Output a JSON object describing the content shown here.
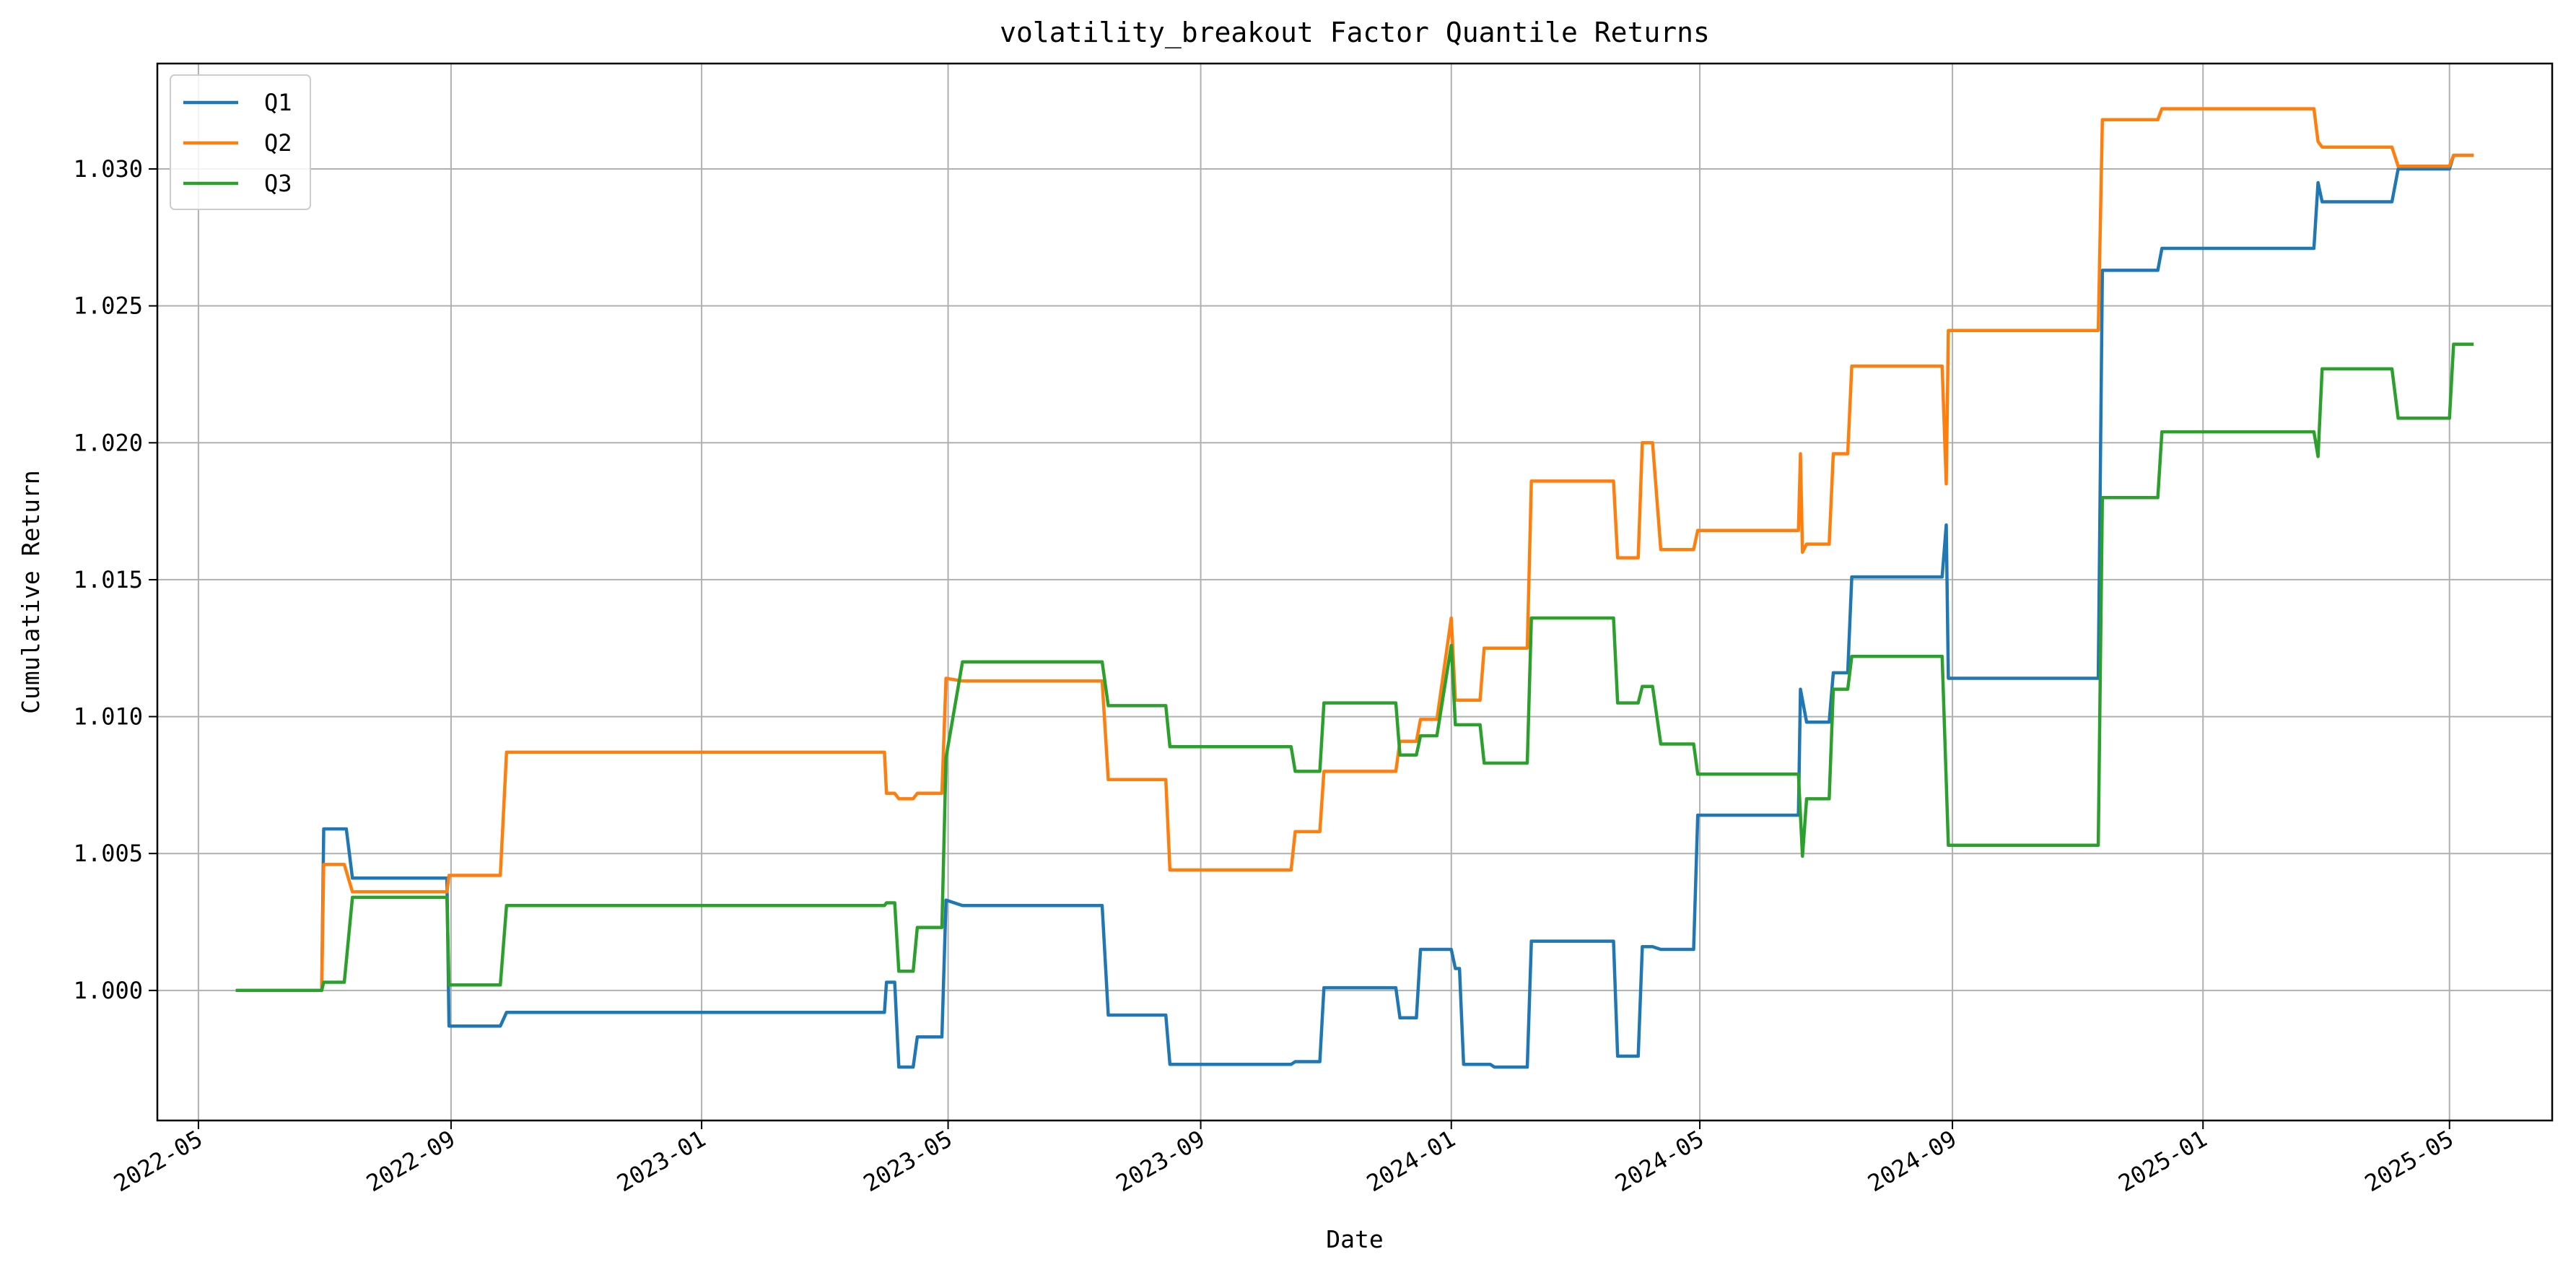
{
  "chart_data": {
    "type": "line",
    "title": "volatility_breakout Factor Quantile Returns",
    "xlabel": "Date",
    "ylabel": "Cumulative Return",
    "xlim": [
      "2022-04-11",
      "2025-06-20"
    ],
    "ylim": [
      0.99525,
      1.03385
    ],
    "grid": true,
    "legend_position": "top-left",
    "x_ticks": [
      "2022-05",
      "2022-09",
      "2023-01",
      "2023-05",
      "2023-09",
      "2024-01",
      "2024-05",
      "2024-09",
      "2025-01",
      "2025-05"
    ],
    "y_ticks": [
      "1.000",
      "1.005",
      "1.010",
      "1.015",
      "1.020",
      "1.025",
      "1.030"
    ],
    "series": [
      {
        "name": "Q1",
        "color": "#1f77b4",
        "points": [
          [
            "2022-05-20",
            1.0
          ],
          [
            "2022-06-30",
            1.0
          ],
          [
            "2022-07-01",
            1.0059
          ],
          [
            "2022-07-12",
            1.0059
          ],
          [
            "2022-07-15",
            1.0041
          ],
          [
            "2022-08-30",
            1.0041
          ],
          [
            "2022-08-31",
            0.9987
          ],
          [
            "2022-09-25",
            0.9987
          ],
          [
            "2022-09-28",
            0.9992
          ],
          [
            "2023-03-31",
            0.9992
          ],
          [
            "2023-04-01",
            1.0003
          ],
          [
            "2023-04-05",
            1.0003
          ],
          [
            "2023-04-07",
            0.9972
          ],
          [
            "2023-04-14",
            0.9972
          ],
          [
            "2023-04-16",
            0.9983
          ],
          [
            "2023-04-28",
            0.9983
          ],
          [
            "2023-04-30",
            1.0033
          ],
          [
            "2023-05-08",
            1.0031
          ],
          [
            "2023-07-15",
            1.0031
          ],
          [
            "2023-07-18",
            0.9991
          ],
          [
            "2023-08-15",
            0.9991
          ],
          [
            "2023-08-17",
            0.9973
          ],
          [
            "2023-10-15",
            0.9973
          ],
          [
            "2023-10-17",
            0.9974
          ],
          [
            "2023-10-29",
            0.9974
          ],
          [
            "2023-10-31",
            1.0001
          ],
          [
            "2023-12-05",
            1.0001
          ],
          [
            "2023-12-07",
            0.999
          ],
          [
            "2023-12-15",
            0.999
          ],
          [
            "2023-12-17",
            1.0015
          ],
          [
            "2023-12-25",
            1.0015
          ],
          [
            "2024-01-01",
            1.0015
          ],
          [
            "2024-01-03",
            1.0008
          ],
          [
            "2024-01-05",
            1.0008
          ],
          [
            "2024-01-07",
            0.9973
          ],
          [
            "2024-01-20",
            0.9973
          ],
          [
            "2024-01-22",
            0.9972
          ],
          [
            "2024-02-07",
            0.9972
          ],
          [
            "2024-02-09",
            1.0018
          ],
          [
            "2024-03-20",
            1.0018
          ],
          [
            "2024-03-22",
            0.9976
          ],
          [
            "2024-04-01",
            0.9976
          ],
          [
            "2024-04-03",
            1.0016
          ],
          [
            "2024-04-08",
            1.0016
          ],
          [
            "2024-04-12",
            1.0015
          ],
          [
            "2024-04-28",
            1.0015
          ],
          [
            "2024-04-30",
            1.0064
          ],
          [
            "2024-06-18",
            1.0064
          ],
          [
            "2024-06-19",
            1.011
          ],
          [
            "2024-06-22",
            1.0098
          ],
          [
            "2024-07-03",
            1.0098
          ],
          [
            "2024-07-05",
            1.0116
          ],
          [
            "2024-07-12",
            1.0116
          ],
          [
            "2024-07-14",
            1.0151
          ],
          [
            "2024-08-27",
            1.0151
          ],
          [
            "2024-08-29",
            1.017
          ],
          [
            "2024-08-30",
            1.0114
          ],
          [
            "2024-11-11",
            1.0114
          ],
          [
            "2024-11-13",
            1.0263
          ],
          [
            "2024-12-10",
            1.0263
          ],
          [
            "2024-12-12",
            1.0271
          ],
          [
            "2025-02-24",
            1.0271
          ],
          [
            "2025-02-26",
            1.0295
          ],
          [
            "2025-02-28",
            1.0288
          ],
          [
            "2025-04-03",
            1.0288
          ],
          [
            "2025-04-06",
            1.03
          ],
          [
            "2025-05-01",
            1.03
          ],
          [
            "2025-05-03",
            1.0305
          ],
          [
            "2025-05-12",
            1.0305
          ]
        ]
      },
      {
        "name": "Q2",
        "color": "#ff7f0e",
        "points": [
          [
            "2022-05-20",
            1.0
          ],
          [
            "2022-06-30",
            1.0
          ],
          [
            "2022-07-01",
            1.0046
          ],
          [
            "2022-07-11",
            1.0046
          ],
          [
            "2022-07-15",
            1.0036
          ],
          [
            "2022-08-30",
            1.0036
          ],
          [
            "2022-08-31",
            1.0042
          ],
          [
            "2022-09-25",
            1.0042
          ],
          [
            "2022-09-28",
            1.0087
          ],
          [
            "2023-03-31",
            1.0087
          ],
          [
            "2023-04-01",
            1.0072
          ],
          [
            "2023-04-05",
            1.0072
          ],
          [
            "2023-04-07",
            1.007
          ],
          [
            "2023-04-14",
            1.007
          ],
          [
            "2023-04-16",
            1.0072
          ],
          [
            "2023-04-28",
            1.0072
          ],
          [
            "2023-04-30",
            1.0114
          ],
          [
            "2023-05-08",
            1.0113
          ],
          [
            "2023-07-15",
            1.0113
          ],
          [
            "2023-07-18",
            1.0077
          ],
          [
            "2023-08-15",
            1.0077
          ],
          [
            "2023-08-17",
            1.0044
          ],
          [
            "2023-10-15",
            1.0044
          ],
          [
            "2023-10-17",
            1.0058
          ],
          [
            "2023-10-29",
            1.0058
          ],
          [
            "2023-10-31",
            1.008
          ],
          [
            "2023-12-05",
            1.008
          ],
          [
            "2023-12-07",
            1.0091
          ],
          [
            "2023-12-15",
            1.0091
          ],
          [
            "2023-12-17",
            1.0099
          ],
          [
            "2023-12-25",
            1.0099
          ],
          [
            "2024-01-01",
            1.0136
          ],
          [
            "2024-01-03",
            1.0106
          ],
          [
            "2024-01-15",
            1.0106
          ],
          [
            "2024-01-17",
            1.0125
          ],
          [
            "2024-02-07",
            1.0125
          ],
          [
            "2024-02-09",
            1.0186
          ],
          [
            "2024-03-20",
            1.0186
          ],
          [
            "2024-03-22",
            1.0158
          ],
          [
            "2024-04-01",
            1.0158
          ],
          [
            "2024-04-03",
            1.02
          ],
          [
            "2024-04-08",
            1.02
          ],
          [
            "2024-04-12",
            1.0161
          ],
          [
            "2024-04-28",
            1.0161
          ],
          [
            "2024-04-30",
            1.0168
          ],
          [
            "2024-06-18",
            1.0168
          ],
          [
            "2024-06-19",
            1.0196
          ],
          [
            "2024-06-20",
            1.016
          ],
          [
            "2024-06-22",
            1.0163
          ],
          [
            "2024-07-03",
            1.0163
          ],
          [
            "2024-07-05",
            1.0196
          ],
          [
            "2024-07-12",
            1.0196
          ],
          [
            "2024-07-14",
            1.0228
          ],
          [
            "2024-08-27",
            1.0228
          ],
          [
            "2024-08-29",
            1.0185
          ],
          [
            "2024-08-30",
            1.0241
          ],
          [
            "2024-11-11",
            1.0241
          ],
          [
            "2024-11-13",
            1.0318
          ],
          [
            "2024-12-10",
            1.0318
          ],
          [
            "2024-12-12",
            1.0322
          ],
          [
            "2025-02-24",
            1.0322
          ],
          [
            "2025-02-26",
            1.031
          ],
          [
            "2025-02-28",
            1.0308
          ],
          [
            "2025-04-03",
            1.0308
          ],
          [
            "2025-04-06",
            1.0301
          ],
          [
            "2025-05-01",
            1.0301
          ],
          [
            "2025-05-03",
            1.0305
          ],
          [
            "2025-05-12",
            1.0305
          ]
        ]
      },
      {
        "name": "Q3",
        "color": "#2ca02c",
        "points": [
          [
            "2022-05-20",
            1.0
          ],
          [
            "2022-06-30",
            1.0
          ],
          [
            "2022-07-01",
            1.0003
          ],
          [
            "2022-07-11",
            1.0003
          ],
          [
            "2022-07-15",
            1.0034
          ],
          [
            "2022-08-30",
            1.0034
          ],
          [
            "2022-08-31",
            1.0002
          ],
          [
            "2022-09-25",
            1.0002
          ],
          [
            "2022-09-28",
            1.0031
          ],
          [
            "2023-03-31",
            1.0031
          ],
          [
            "2023-04-01",
            1.0032
          ],
          [
            "2023-04-05",
            1.0032
          ],
          [
            "2023-04-07",
            1.0007
          ],
          [
            "2023-04-14",
            1.0007
          ],
          [
            "2023-04-16",
            1.0023
          ],
          [
            "2023-04-28",
            1.0023
          ],
          [
            "2023-04-30",
            1.0085
          ],
          [
            "2023-05-08",
            1.012
          ],
          [
            "2023-07-15",
            1.012
          ],
          [
            "2023-07-18",
            1.0104
          ],
          [
            "2023-08-15",
            1.0104
          ],
          [
            "2023-08-17",
            1.0089
          ],
          [
            "2023-10-15",
            1.0089
          ],
          [
            "2023-10-17",
            1.008
          ],
          [
            "2023-10-29",
            1.008
          ],
          [
            "2023-10-31",
            1.0105
          ],
          [
            "2023-12-05",
            1.0105
          ],
          [
            "2023-12-07",
            1.0086
          ],
          [
            "2023-12-15",
            1.0086
          ],
          [
            "2023-12-17",
            1.0093
          ],
          [
            "2023-12-25",
            1.0093
          ],
          [
            "2024-01-01",
            1.0126
          ],
          [
            "2024-01-03",
            1.0097
          ],
          [
            "2024-01-15",
            1.0097
          ],
          [
            "2024-01-17",
            1.0083
          ],
          [
            "2024-02-07",
            1.0083
          ],
          [
            "2024-02-09",
            1.0136
          ],
          [
            "2024-03-20",
            1.0136
          ],
          [
            "2024-03-22",
            1.0105
          ],
          [
            "2024-04-01",
            1.0105
          ],
          [
            "2024-04-03",
            1.0111
          ],
          [
            "2024-04-08",
            1.0111
          ],
          [
            "2024-04-12",
            1.009
          ],
          [
            "2024-04-28",
            1.009
          ],
          [
            "2024-04-30",
            1.0079
          ],
          [
            "2024-06-18",
            1.0079
          ],
          [
            "2024-06-20",
            1.0049
          ],
          [
            "2024-06-22",
            1.007
          ],
          [
            "2024-07-03",
            1.007
          ],
          [
            "2024-07-05",
            1.011
          ],
          [
            "2024-07-12",
            1.011
          ],
          [
            "2024-07-14",
            1.0122
          ],
          [
            "2024-08-27",
            1.0122
          ],
          [
            "2024-08-30",
            1.0053
          ],
          [
            "2024-11-11",
            1.0053
          ],
          [
            "2024-11-13",
            1.018
          ],
          [
            "2024-12-10",
            1.018
          ],
          [
            "2024-12-12",
            1.0204
          ],
          [
            "2025-02-24",
            1.0204
          ],
          [
            "2025-02-26",
            1.0195
          ],
          [
            "2025-02-28",
            1.0227
          ],
          [
            "2025-04-03",
            1.0227
          ],
          [
            "2025-04-06",
            1.0209
          ],
          [
            "2025-05-01",
            1.0209
          ],
          [
            "2025-05-03",
            1.0236
          ],
          [
            "2025-05-12",
            1.0236
          ]
        ]
      }
    ]
  }
}
